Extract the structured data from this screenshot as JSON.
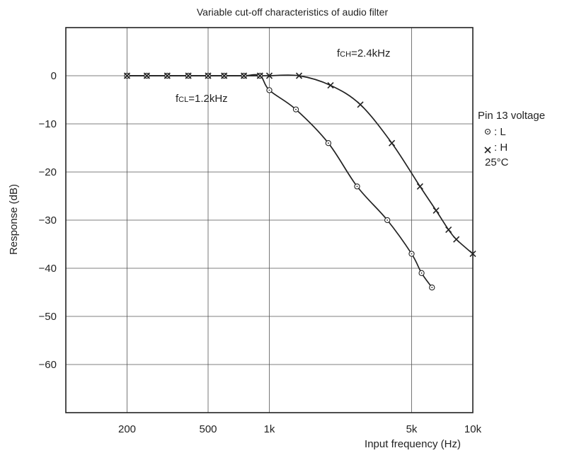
{
  "chart_data": {
    "type": "line",
    "title": "Variable cut-off characteristics of audio filter",
    "xlabel": "Input frequency (Hz)",
    "ylabel": "Response (dB)",
    "x_scale": "log",
    "xlim": [
      100,
      10000
    ],
    "ylim": [
      -70,
      10
    ],
    "grid": true,
    "x_ticks": [
      {
        "value": 200,
        "label": "200"
      },
      {
        "value": 500,
        "label": "500"
      },
      {
        "value": 1000,
        "label": "1k"
      },
      {
        "value": 5000,
        "label": "5k"
      },
      {
        "value": 10000,
        "label": "10k"
      }
    ],
    "x_grid": [
      200,
      500,
      1000,
      5000
    ],
    "y_ticks": [
      0,
      -10,
      -20,
      -30,
      -40,
      -50,
      -60
    ],
    "y_tick_labels": [
      "0",
      "−10",
      "−20",
      "−30",
      "−40",
      "−50",
      "−60"
    ],
    "series": [
      {
        "name": "L",
        "marker": "circle-dot",
        "x": [
          200,
          250,
          315,
          400,
          500,
          600,
          750,
          900,
          1000,
          1350,
          1950,
          2700,
          3800,
          5000,
          5600,
          6300
        ],
        "y": [
          0,
          0,
          0,
          0,
          0,
          0,
          0,
          0,
          -3,
          -7,
          -14,
          -23,
          -30,
          -37,
          -41,
          -44
        ]
      },
      {
        "name": "H",
        "marker": "x",
        "x": [
          200,
          250,
          315,
          400,
          500,
          600,
          750,
          900,
          1000,
          1400,
          2000,
          2800,
          4000,
          5500,
          6600,
          7600,
          8300,
          10000
        ],
        "y": [
          0,
          0,
          0,
          0,
          0,
          0,
          0,
          0,
          0,
          0,
          -2,
          -6,
          -14,
          -23,
          -28,
          -32,
          -34,
          -37
        ]
      }
    ],
    "annotations": [
      {
        "label": "fCL=1.2kHz",
        "main": "f",
        "sub": "CL",
        "rest": "=1.2kHz"
      },
      {
        "label": "fCH=2.4kHz",
        "main": "f",
        "sub": "CH",
        "rest": "=2.4kHz"
      }
    ],
    "legend": {
      "title": "Pin 13 voltage",
      "position": "right",
      "items": [
        {
          "marker": "circle-dot",
          "label": ": L"
        },
        {
          "marker": "x",
          "label": ": H"
        }
      ],
      "note": "25°C"
    }
  }
}
